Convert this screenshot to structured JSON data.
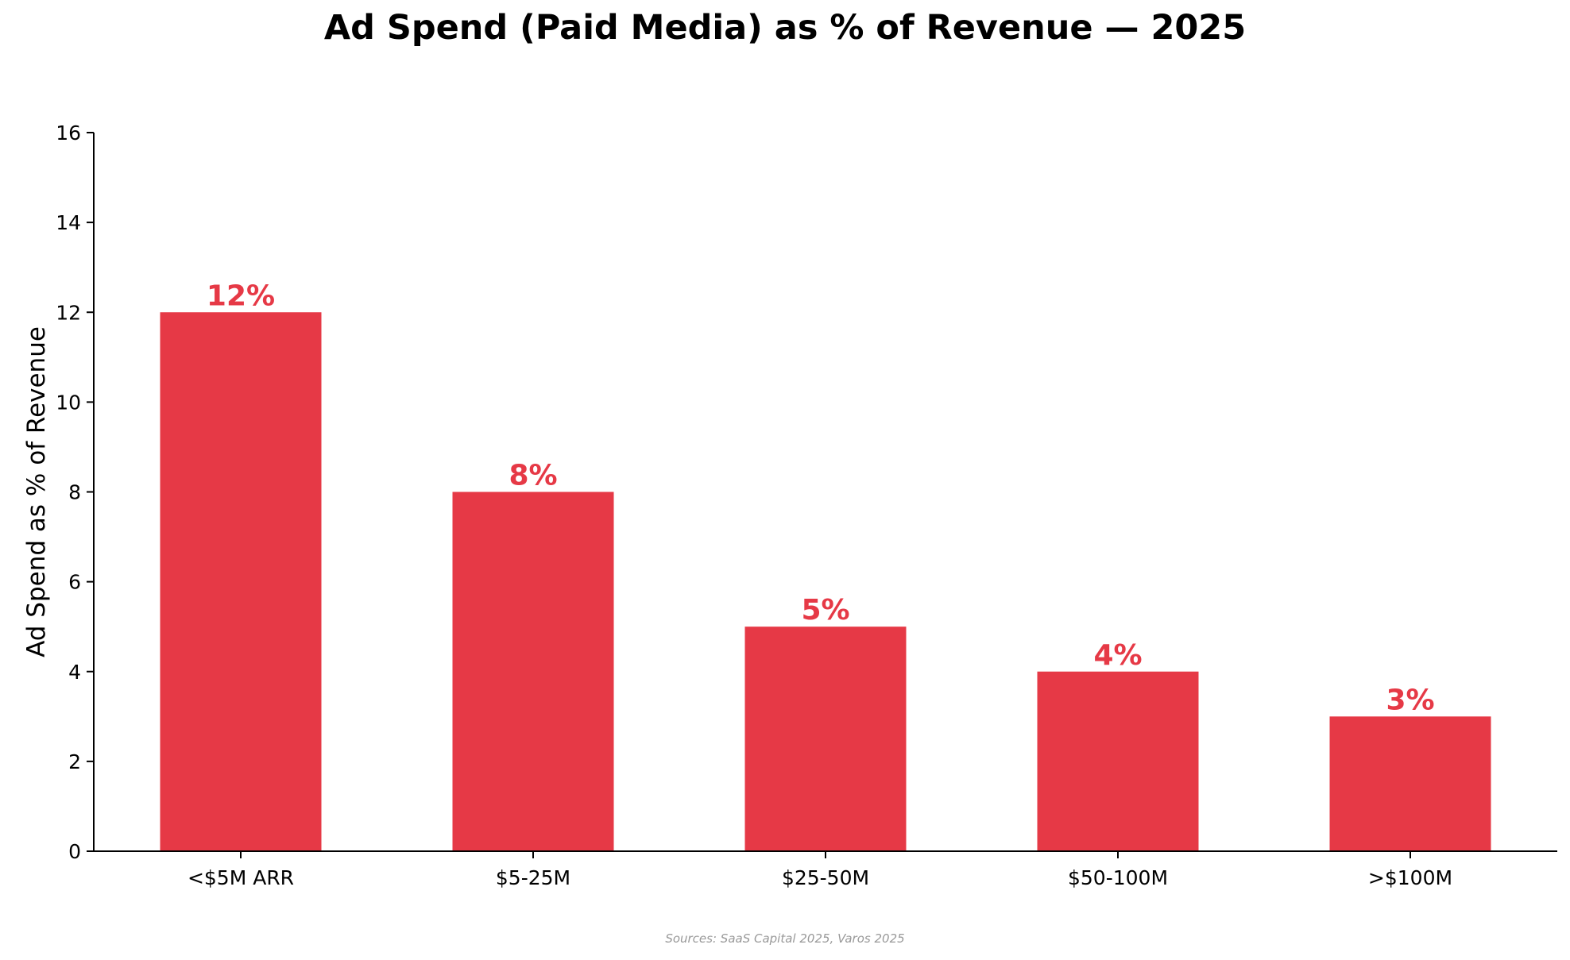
{
  "chart_data": {
    "type": "bar",
    "title": "Ad Spend (Paid Media) as % of Revenue — 2025",
    "ylabel": "Ad Spend as % of Revenue",
    "xlabel": "",
    "categories": [
      "<$5M ARR",
      "$5-25M",
      "$25-50M",
      "$50-100M",
      ">$100M"
    ],
    "values": [
      12,
      8,
      5,
      4,
      3
    ],
    "data_labels": [
      "12%",
      "8%",
      "5%",
      "4%",
      "3%"
    ],
    "ylim": [
      0,
      16
    ],
    "yticks": [
      0,
      2,
      4,
      6,
      8,
      10,
      12,
      14,
      16
    ],
    "grid": false,
    "legend": "none",
    "bar_color": "#e63946",
    "label_color": "#e63946",
    "source": "Sources: SaaS Capital 2025, Varos 2025"
  }
}
